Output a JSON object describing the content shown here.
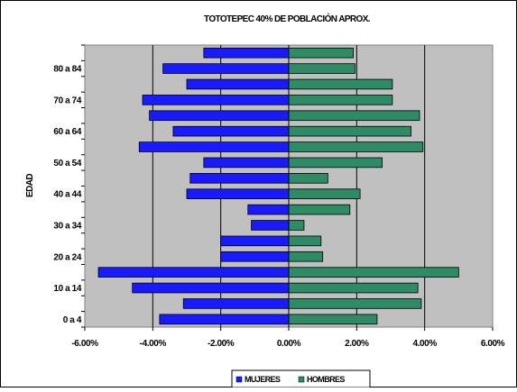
{
  "chart_data": {
    "type": "bar",
    "orientation": "horizontal",
    "title": "TOTOTEPEC 40% DE POBLACIÓN APROX.",
    "xlabel": "",
    "ylabel": "EDAD",
    "xlim": [
      -0.06,
      0.06
    ],
    "xticks": [
      -0.06,
      -0.04,
      -0.02,
      0,
      0.02,
      0.04,
      0.06
    ],
    "xtick_labels": [
      "-6.00%",
      "-4.00%",
      "-2.00%",
      "0.00%",
      "2.00%",
      "4.00%",
      "6.00%"
    ],
    "category_labels": [
      "0 a 4",
      "",
      "10 a 14",
      "",
      "20 a 24",
      "",
      "30 a 34",
      "",
      "40 a 44",
      "",
      "50 a 54",
      "",
      "60 a 64",
      "",
      "70 a 74",
      "",
      "80 a 84",
      ""
    ],
    "series": [
      {
        "name": "MUJERES",
        "color": "#1a1aff",
        "values": [
          -0.038,
          -0.031,
          -0.046,
          -0.056,
          -0.02,
          -0.02,
          -0.011,
          -0.012,
          -0.03,
          -0.029,
          -0.025,
          -0.044,
          -0.034,
          -0.041,
          -0.043,
          -0.03,
          -0.037,
          -0.025
        ]
      },
      {
        "name": "HOMBRES",
        "color": "#2e8b66",
        "values": [
          0.026,
          0.039,
          0.038,
          0.05,
          0.01,
          0.0095,
          0.0045,
          0.018,
          0.021,
          0.0115,
          0.0275,
          0.0395,
          0.036,
          0.0385,
          0.0305,
          0.0305,
          0.0195,
          0.019
        ]
      }
    ],
    "grid": true,
    "legend_position": "bottom"
  }
}
